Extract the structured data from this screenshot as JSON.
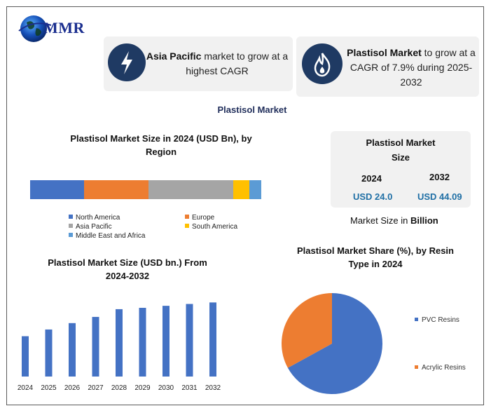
{
  "brand": {
    "logo_text": "MMR"
  },
  "callouts": [
    {
      "bold": "Asia Pacific",
      "rest": " market to grow at a highest CAGR",
      "icon": "lightning-icon"
    },
    {
      "bold": "Plastisol Market",
      "rest": " to grow at a CAGR of 7.9% during 2025-2032",
      "icon": "flame-icon"
    }
  ],
  "main_title": "Plastisol Market",
  "region_chart": {
    "title": "Plastisol Market Size  in 2024 (USD Bn), by Region",
    "legend": [
      "North America",
      "Europe",
      "Asia Pacific",
      "South America",
      "Middle East and Africa"
    ]
  },
  "size_box": {
    "title": "Plastisol Market Size",
    "year_a": "2024",
    "year_b": "2032",
    "value_a": "USD 24.0",
    "value_b": "USD 44.09",
    "caption_pre": "Market Size in ",
    "caption_bold": "Billion"
  },
  "growth_chart": {
    "title": "Plastisol Market Size (USD bn.) From 2024-2032"
  },
  "pie_chart": {
    "title": "Plastisol Market Share (%), by Resin Type in 2024"
  },
  "chart_data": [
    {
      "type": "bar",
      "orientation": "horizontal-stacked",
      "series": [
        {
          "name": "North America",
          "values": [
            3.7
          ],
          "color": "#4472c4"
        },
        {
          "name": "Europe",
          "values": [
            4.4
          ],
          "color": "#ed7d31"
        },
        {
          "name": "Asia Pacific",
          "values": [
            5.8
          ],
          "color": "#a5a5a5"
        },
        {
          "name": "South America",
          "values": [
            1.1
          ],
          "color": "#ffc000"
        },
        {
          "name": "Middle East and Africa",
          "values": [
            0.8
          ],
          "color": "#5b9bd5"
        }
      ],
      "title": "Plastisol Market Size  in 2024 (USD Bn), by Region",
      "legend_position": "bottom"
    },
    {
      "type": "bar",
      "categories": [
        "2024",
        "2025",
        "2026",
        "2027",
        "2028",
        "2029",
        "2030",
        "2031",
        "2032"
      ],
      "values": [
        24.0,
        28.0,
        31.8,
        35.5,
        40.1,
        40.9,
        42.1,
        43.2,
        44.1
      ],
      "color": "#4472c4",
      "ylim": [
        0,
        48
      ],
      "title": "Plastisol Market Size (USD bn.) From 2024-2032",
      "grid": false
    },
    {
      "type": "pie",
      "labels": [
        "PVC Resins",
        "Acrylic Resins"
      ],
      "values": [
        67,
        33
      ],
      "colors": [
        "#4472c4",
        "#ed7d31"
      ],
      "title": "Plastisol Market Share (%), by Resin Type in 2024",
      "legend_position": "right"
    }
  ]
}
